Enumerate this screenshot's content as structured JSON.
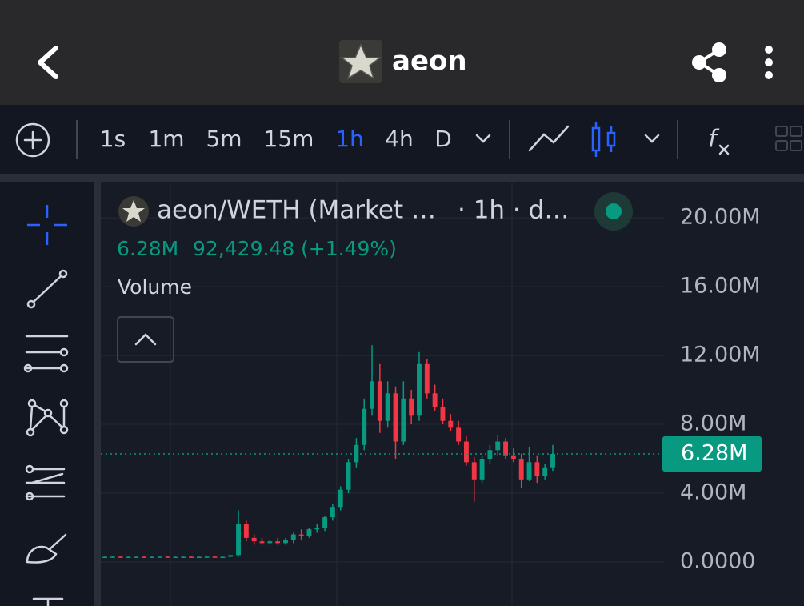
{
  "header": {
    "title": "aeon"
  },
  "toolbar": {
    "intervals": [
      "1s",
      "1m",
      "5m",
      "15m",
      "1h",
      "4h",
      "D"
    ],
    "active": 4
  },
  "chart_data": {
    "type": "candlestick",
    "title": "aeon/WETH (Market …",
    "subtitle": "· 1h · d…",
    "legend": {
      "price": "6.28M",
      "volume": "92,429.48",
      "change": "(+1.49%)",
      "indicator": "Volume"
    },
    "up_color": "#089981",
    "down_color": "#f23645",
    "open": [
      300000,
      300000,
      310000,
      300000,
      300000,
      305000,
      300000,
      300000,
      310000,
      300000,
      300000,
      305000,
      300000,
      300000,
      310000,
      300000,
      300000,
      400000,
      2200000,
      1400000,
      1200000,
      1100000,
      1200000,
      1100000,
      1300000,
      1600000,
      1500000,
      1900000,
      2000000,
      2600000,
      3200000,
      4200000,
      5800000,
      6800000,
      8900000,
      10500000,
      8200000,
      9800000,
      7000000,
      9500000,
      8500000,
      11500000,
      9800000,
      9000000,
      8200000,
      7800000,
      7000000,
      5800000,
      4800000,
      6000000,
      6500000,
      7000000,
      6200000,
      6000000,
      4800000,
      5800000,
      5000000,
      5500000
    ],
    "high": [
      320000,
      330000,
      330000,
      320000,
      320000,
      325000,
      320000,
      320000,
      330000,
      320000,
      320000,
      325000,
      320000,
      320000,
      330000,
      320000,
      320000,
      3000000,
      2400000,
      1600000,
      1400000,
      1300000,
      1400000,
      1400000,
      1700000,
      1900000,
      2000000,
      2200000,
      2700000,
      3400000,
      4400000,
      6000000,
      7200000,
      9500000,
      12600000,
      11500000,
      10500000,
      10200000,
      10500000,
      10000000,
      12200000,
      11800000,
      10300000,
      9500000,
      8600000,
      8200000,
      7300000,
      6100000,
      6200000,
      6800000,
      7400000,
      7200000,
      6600000,
      6300000,
      6700000,
      6200000,
      5700000,
      6800000
    ],
    "low": [
      290000,
      290000,
      295000,
      290000,
      290000,
      295000,
      290000,
      290000,
      295000,
      290000,
      290000,
      295000,
      290000,
      290000,
      295000,
      290000,
      290000,
      300000,
      1200000,
      1000000,
      1000000,
      1000000,
      1000000,
      1000000,
      1100000,
      1300000,
      1400000,
      1700000,
      1800000,
      2400000,
      3000000,
      4000000,
      5500000,
      6500000,
      8500000,
      7500000,
      7800000,
      6000000,
      6800000,
      8000000,
      8200000,
      9500000,
      8800000,
      8000000,
      7600000,
      6800000,
      5600000,
      3500000,
      4600000,
      5700000,
      6200000,
      6000000,
      5800000,
      4300000,
      4700000,
      4600000,
      4800000,
      5300000
    ],
    "close": [
      300000,
      310000,
      300000,
      300000,
      305000,
      300000,
      300000,
      310000,
      300000,
      300000,
      305000,
      300000,
      300000,
      310000,
      300000,
      300000,
      400000,
      2200000,
      1400000,
      1200000,
      1100000,
      1200000,
      1100000,
      1300000,
      1600000,
      1500000,
      1900000,
      2000000,
      2600000,
      3200000,
      4200000,
      5800000,
      6800000,
      8900000,
      10500000,
      8200000,
      9800000,
      7000000,
      9500000,
      8500000,
      11500000,
      9800000,
      9000000,
      8200000,
      7800000,
      7000000,
      5800000,
      4800000,
      6000000,
      6500000,
      7000000,
      6200000,
      6000000,
      4800000,
      5800000,
      5000000,
      5500000,
      6280000
    ],
    "ylim": [
      -2560000,
      22100000
    ],
    "yticks": [
      {
        "value": 0,
        "label": "0.0000"
      },
      {
        "value": 4000000,
        "label": "4.00M"
      },
      {
        "value": 8000000,
        "label": "8.00M"
      },
      {
        "value": 12000000,
        "label": "12.00M"
      },
      {
        "value": 16000000,
        "label": "16.00M"
      },
      {
        "value": 20000000,
        "label": "20.00M"
      }
    ],
    "last": {
      "value": 6280000,
      "label": "6.28M"
    },
    "grid": true
  }
}
